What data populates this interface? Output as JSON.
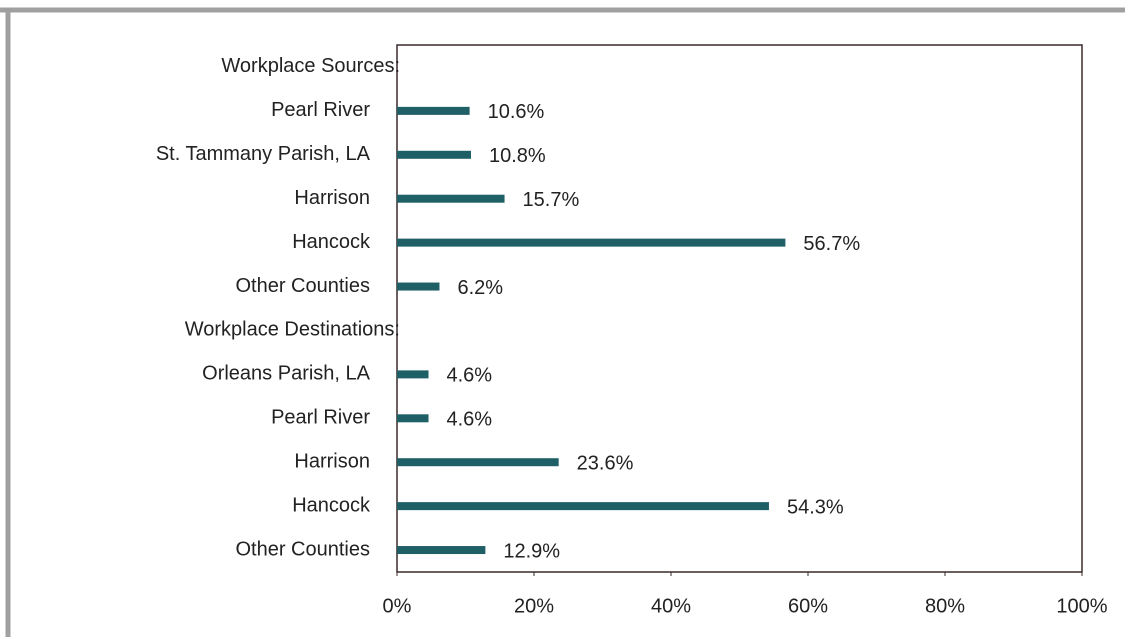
{
  "chart_data": {
    "type": "bar",
    "orientation": "horizontal",
    "categories": [
      "Workplace Sources:",
      "Pearl River",
      "St. Tammany Parish, LA",
      "Harrison",
      "Hancock",
      "Other Counties",
      "Workplace Destinations:",
      "Orleans Parish, LA",
      "Pearl River",
      "Harrison",
      "Hancock",
      "Other Counties"
    ],
    "values": [
      null,
      10.6,
      10.8,
      15.7,
      56.7,
      6.2,
      null,
      4.6,
      4.6,
      23.6,
      54.3,
      12.9
    ],
    "value_labels": [
      null,
      "10.6%",
      "10.8%",
      "15.7%",
      "56.7%",
      "6.2%",
      null,
      "4.6%",
      "4.6%",
      "23.6%",
      "54.3%",
      "12.9%"
    ],
    "color": "#1f5f66",
    "xlim": [
      0,
      100
    ],
    "xticks": [
      {
        "value": 0,
        "label": "0%"
      },
      {
        "value": 20,
        "label": "20%"
      },
      {
        "value": 40,
        "label": "40%"
      },
      {
        "value": 60,
        "label": "60%"
      },
      {
        "value": 80,
        "label": "80%"
      },
      {
        "value": 100,
        "label": "100%"
      }
    ],
    "grid": false
  }
}
